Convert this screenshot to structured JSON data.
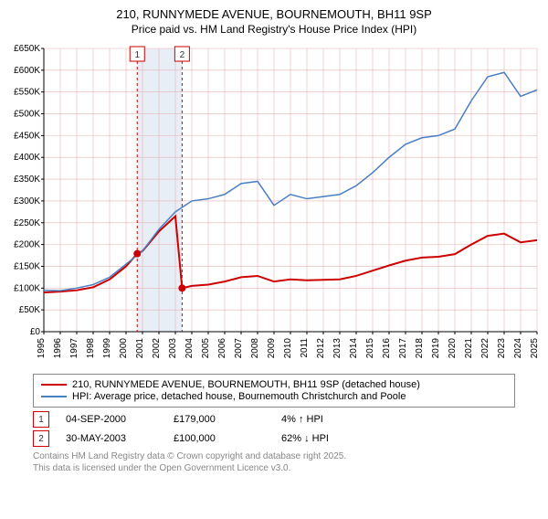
{
  "title": "210, RUNNYMEDE AVENUE, BOURNEMOUTH, BH11 9SP",
  "subtitle": "Price paid vs. HM Land Registry's House Price Index (HPI)",
  "chart": {
    "type": "line",
    "background_color": "#ffffff",
    "grid_color": "#e6b3b3",
    "axis_color": "#000000",
    "label_fontsize": 10,
    "y": {
      "min": 0,
      "max": 650000,
      "step": 50000,
      "format_prefix": "£",
      "format_suffix": "K",
      "tick_labels": [
        "£0",
        "£50K",
        "£100K",
        "£150K",
        "£200K",
        "£250K",
        "£300K",
        "£350K",
        "£400K",
        "£450K",
        "£500K",
        "£550K",
        "£600K",
        "£650K"
      ]
    },
    "x": {
      "min": 1995,
      "max": 2025,
      "step": 1,
      "tick_labels": [
        "1995",
        "1996",
        "1997",
        "1998",
        "1999",
        "2000",
        "2001",
        "2002",
        "2003",
        "2004",
        "2005",
        "2006",
        "2007",
        "2008",
        "2009",
        "2010",
        "2011",
        "2012",
        "2013",
        "2014",
        "2015",
        "2016",
        "2017",
        "2018",
        "2019",
        "2020",
        "2021",
        "2022",
        "2023",
        "2024",
        "2025"
      ]
    },
    "highlight_band": {
      "x_from": 2000.68,
      "x_to": 2003.41,
      "fill": "#e8eef6"
    },
    "series": [
      {
        "name": "property",
        "color": "#cc0000",
        "width": 2,
        "points": [
          [
            1995,
            90000
          ],
          [
            1996,
            92000
          ],
          [
            1997,
            95000
          ],
          [
            1998,
            102000
          ],
          [
            1999,
            120000
          ],
          [
            2000,
            150000
          ],
          [
            2000.68,
            179000
          ],
          [
            2001,
            185000
          ],
          [
            2002,
            230000
          ],
          [
            2003,
            265000
          ],
          [
            2003.41,
            100000
          ],
          [
            2004,
            105000
          ],
          [
            2005,
            108000
          ],
          [
            2006,
            115000
          ],
          [
            2007,
            125000
          ],
          [
            2008,
            128000
          ],
          [
            2009,
            115000
          ],
          [
            2010,
            120000
          ],
          [
            2011,
            118000
          ],
          [
            2012,
            119000
          ],
          [
            2013,
            120000
          ],
          [
            2014,
            128000
          ],
          [
            2015,
            140000
          ],
          [
            2016,
            152000
          ],
          [
            2017,
            163000
          ],
          [
            2018,
            170000
          ],
          [
            2019,
            172000
          ],
          [
            2020,
            178000
          ],
          [
            2021,
            200000
          ],
          [
            2022,
            220000
          ],
          [
            2023,
            225000
          ],
          [
            2024,
            205000
          ],
          [
            2025,
            210000
          ]
        ]
      },
      {
        "name": "hpi",
        "color": "#4a7fc4",
        "width": 1.5,
        "points": [
          [
            1995,
            95000
          ],
          [
            1996,
            94000
          ],
          [
            1997,
            100000
          ],
          [
            1998,
            108000
          ],
          [
            1999,
            125000
          ],
          [
            2000,
            155000
          ],
          [
            2001,
            185000
          ],
          [
            2002,
            235000
          ],
          [
            2003,
            275000
          ],
          [
            2004,
            300000
          ],
          [
            2005,
            305000
          ],
          [
            2006,
            315000
          ],
          [
            2007,
            340000
          ],
          [
            2008,
            345000
          ],
          [
            2009,
            290000
          ],
          [
            2010,
            315000
          ],
          [
            2011,
            305000
          ],
          [
            2012,
            310000
          ],
          [
            2013,
            315000
          ],
          [
            2014,
            335000
          ],
          [
            2015,
            365000
          ],
          [
            2016,
            400000
          ],
          [
            2017,
            430000
          ],
          [
            2018,
            445000
          ],
          [
            2019,
            450000
          ],
          [
            2020,
            465000
          ],
          [
            2021,
            530000
          ],
          [
            2022,
            585000
          ],
          [
            2023,
            595000
          ],
          [
            2024,
            540000
          ],
          [
            2025,
            555000
          ]
        ]
      }
    ],
    "sale_markers": [
      {
        "label": "1",
        "x": 2000.68,
        "y": 179000,
        "border_color": "#cc0000",
        "fill": "#ffffff",
        "dot_color": "#cc0000",
        "line_dash": "3,3"
      },
      {
        "label": "2",
        "x": 2003.41,
        "y": 100000,
        "border_color": "#cc0000",
        "fill": "#ffffff",
        "dot_color": "#cc0000",
        "line_dash": "3,3"
      }
    ]
  },
  "legend": {
    "items": [
      {
        "color": "#cc0000",
        "label": "210, RUNNYMEDE AVENUE, BOURNEMOUTH, BH11 9SP (detached house)"
      },
      {
        "color": "#4a7fc4",
        "label": "HPI: Average price, detached house, Bournemouth Christchurch and Poole"
      }
    ]
  },
  "sales": [
    {
      "label": "1",
      "border_color": "#cc0000",
      "date": "04-SEP-2000",
      "price": "£179,000",
      "delta": "4% ↑ HPI"
    },
    {
      "label": "2",
      "border_color": "#cc0000",
      "date": "30-MAY-2003",
      "price": "£100,000",
      "delta": "62% ↓ HPI"
    }
  ],
  "footer": {
    "line1": "Contains HM Land Registry data © Crown copyright and database right 2025.",
    "line2": "This data is licensed under the Open Government Licence v3.0."
  }
}
